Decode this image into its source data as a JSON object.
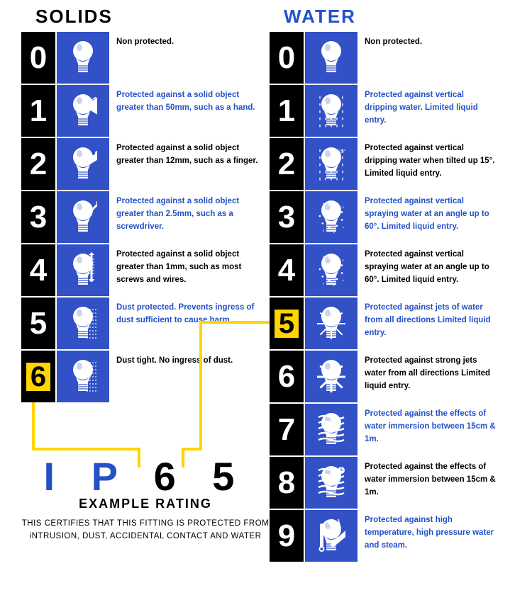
{
  "colors": {
    "blue_bg": "#3251c6",
    "blue_text": "#2451c9",
    "black": "#000000",
    "white": "#ffffff",
    "yellow": "#ffd400"
  },
  "solids": {
    "title": "SOLIDS",
    "highlight_index": 6,
    "rows": [
      {
        "n": "0",
        "text": "Non protected.",
        "color": "black"
      },
      {
        "n": "1",
        "text": "Protected against a solid object greater than 50mm, such as a hand.",
        "color": "blue"
      },
      {
        "n": "2",
        "text": "Protected against a solid object greater than 12mm, such as a finger.",
        "color": "black"
      },
      {
        "n": "3",
        "text": "Protected against a solid object greater than 2.5mm, such as a screwdriver.",
        "color": "blue"
      },
      {
        "n": "4",
        "text": "Protected against a solid object greater than 1mm, such as most screws and wires.",
        "color": "black"
      },
      {
        "n": "5",
        "text": "Dust protected. Prevents ingress of dust sufficient to cause harm.",
        "color": "blue"
      },
      {
        "n": "6",
        "text": "Dust tight. No ingress of dust.",
        "color": "black"
      }
    ]
  },
  "water": {
    "title": "WATER",
    "highlight_index": 5,
    "rows": [
      {
        "n": "0",
        "text": "Non protected.",
        "color": "black"
      },
      {
        "n": "1",
        "text": "Protected against vertical dripping water. Limited liquid entry.",
        "color": "blue"
      },
      {
        "n": "2",
        "text": "Protected against vertical dripping water when tilted up 15°. Limited liquid entry.",
        "color": "black"
      },
      {
        "n": "3",
        "text": "Protected against vertical spraying water at an angle up to 60°. Limited liquid entry.",
        "color": "blue"
      },
      {
        "n": "4",
        "text": "Protected against vertical spraying water at an angle up to 60°. Limited liquid entry.",
        "color": "black"
      },
      {
        "n": "5",
        "text": "Protected against jets of water from all directions Limited liquid entry.",
        "color": "blue"
      },
      {
        "n": "6",
        "text": "Protected against strong jets water from all directions Limited liquid entry.",
        "color": "black"
      },
      {
        "n": "7",
        "text": "Protected against the effects of water immersion between 15cm & 1m.",
        "color": "blue"
      },
      {
        "n": "8",
        "text": "Protected against the effects of water immersion between 15cm & 1m.",
        "color": "black"
      },
      {
        "n": "9",
        "text": "Protected against high temperature, high pressure water and steam.",
        "color": "blue"
      }
    ]
  },
  "ip": {
    "code_prefix": "I P",
    "code_num": "6 5",
    "subtitle": "EXAMPLE RATING",
    "text": "THIS CERTIFIES THAT THIS FITTING IS PROTECTED FROM iNTRUSION, DUST, ACCIDENTAL CONTACT AND WATER"
  }
}
